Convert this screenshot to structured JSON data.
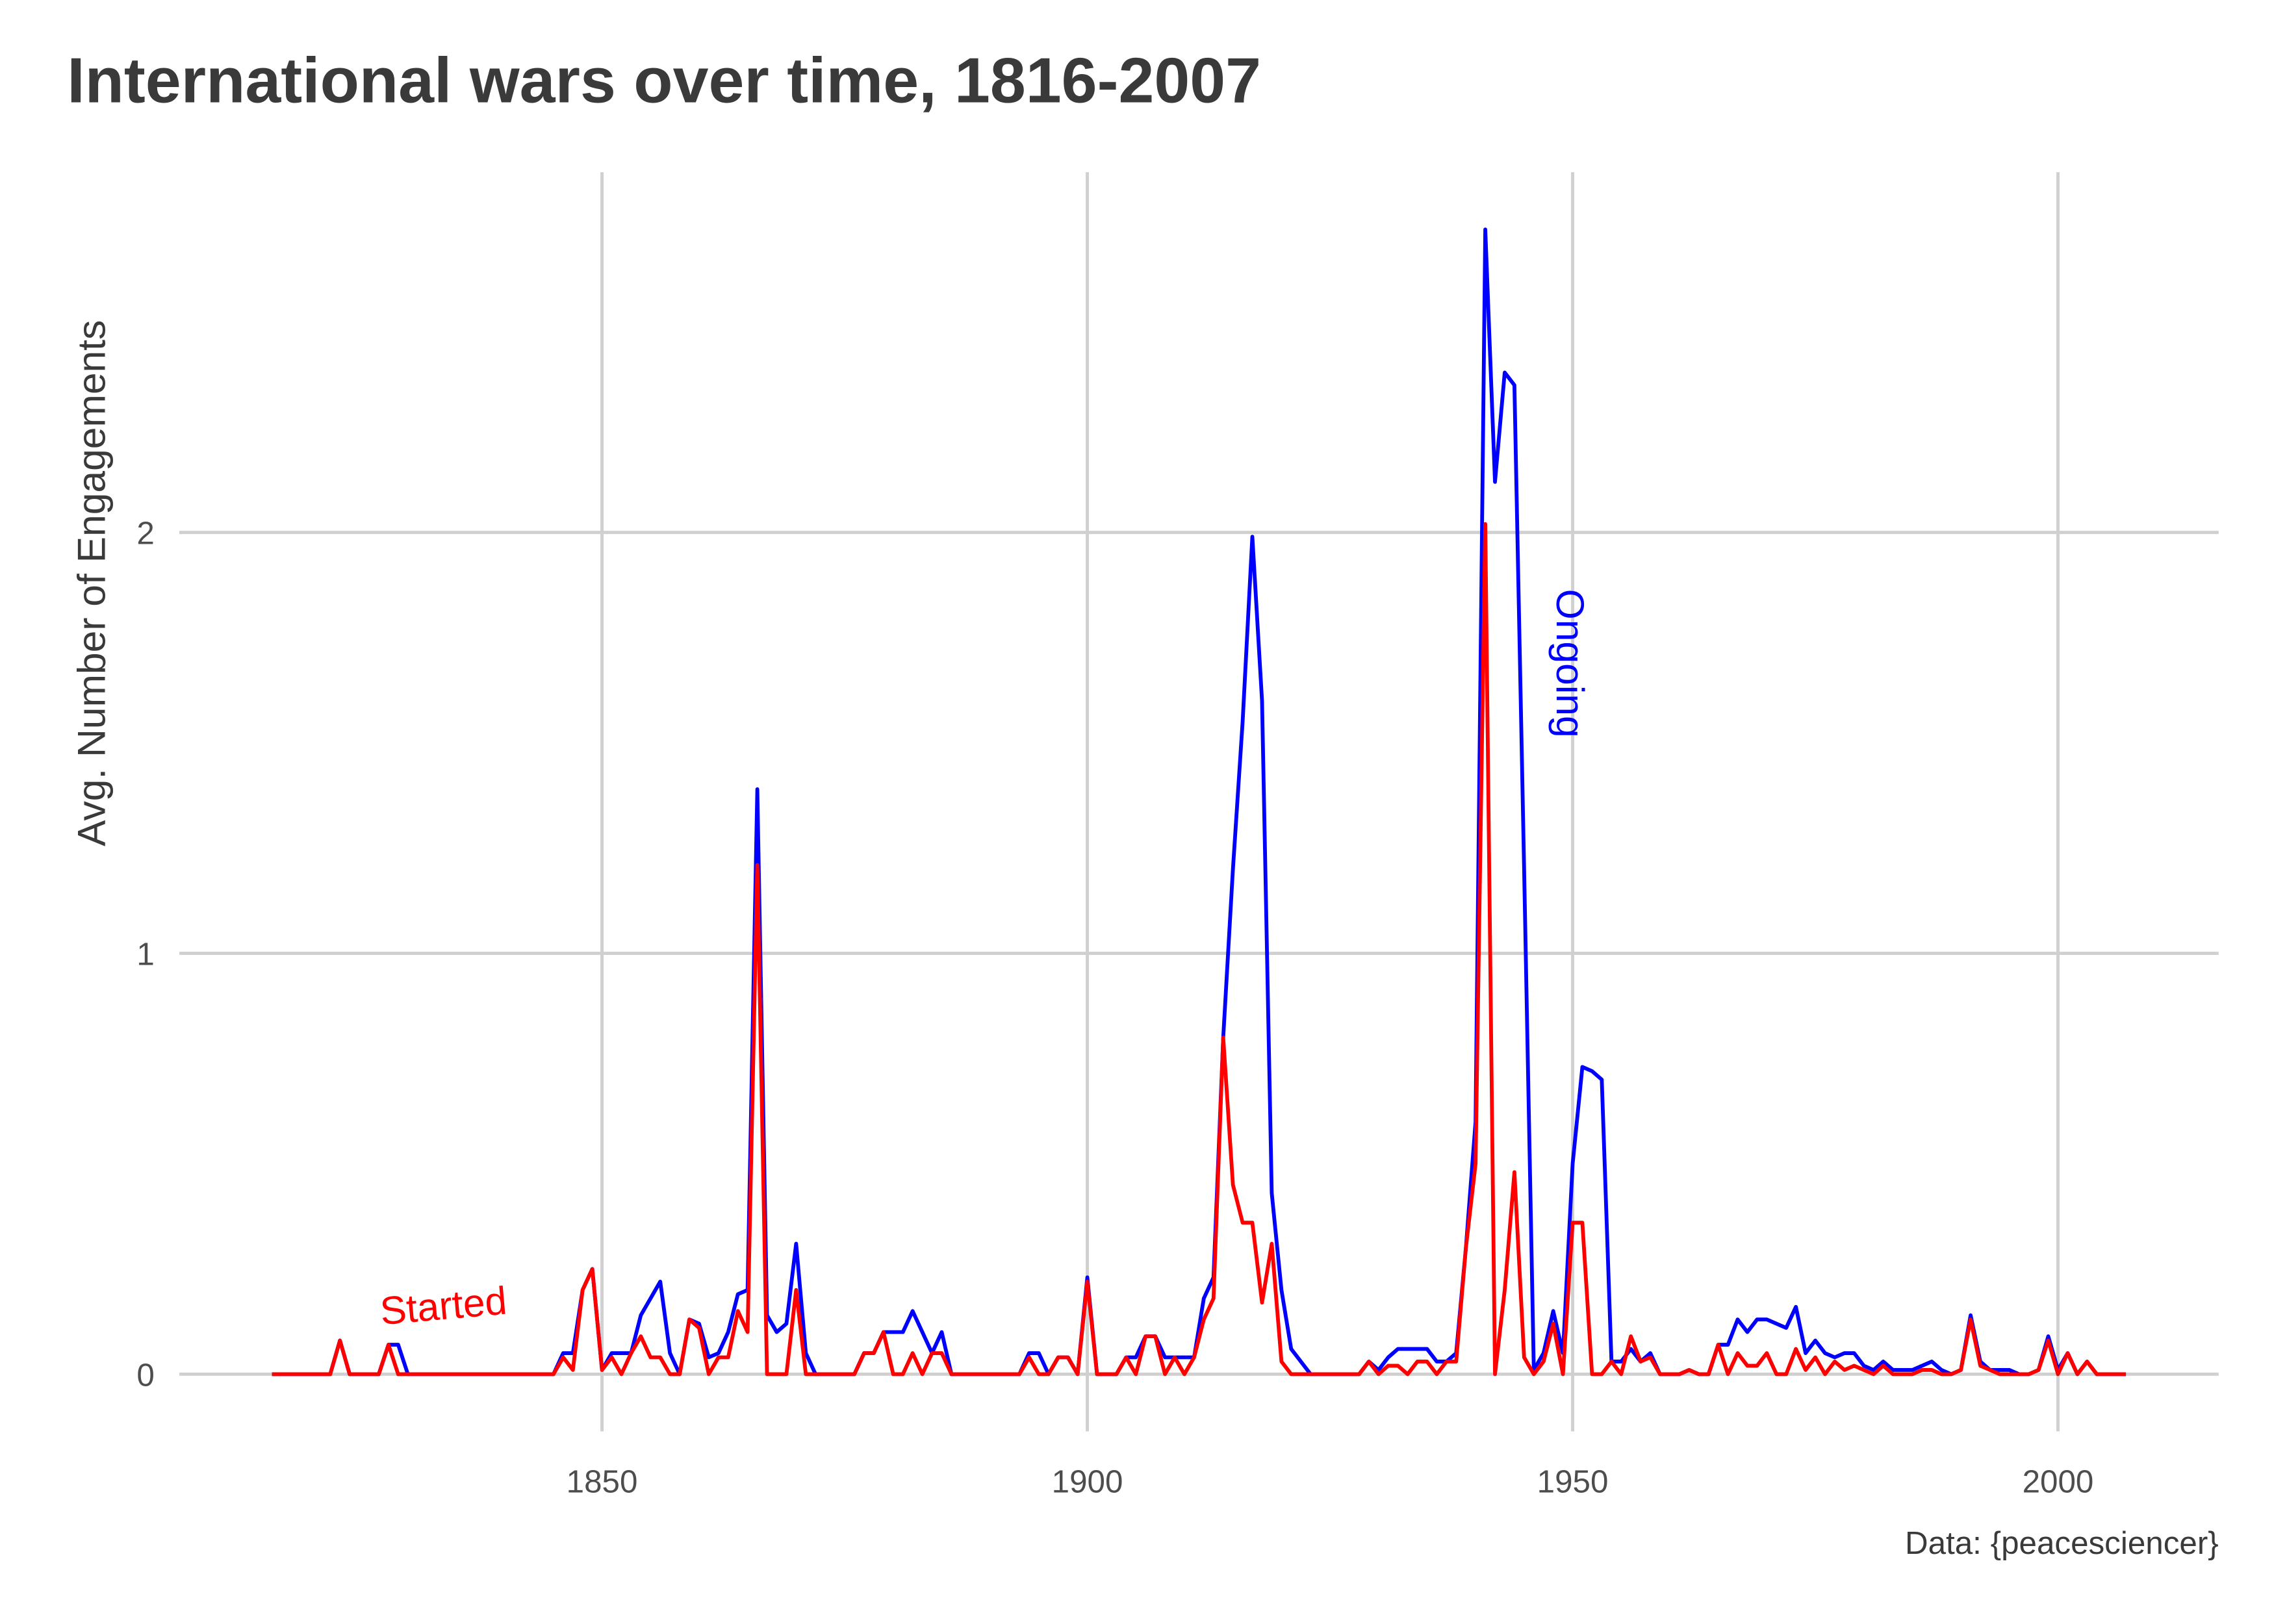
{
  "chart_data": {
    "type": "line",
    "title": "International wars over time, 1816-2007",
    "y_label": "Avg. Number of Engagements",
    "caption": "Data: {peacesciencer}",
    "x": [
      1816,
      1817,
      1818,
      1819,
      1820,
      1821,
      1822,
      1823,
      1824,
      1825,
      1826,
      1827,
      1828,
      1829,
      1830,
      1831,
      1832,
      1833,
      1834,
      1835,
      1836,
      1837,
      1838,
      1839,
      1840,
      1841,
      1842,
      1843,
      1844,
      1845,
      1846,
      1847,
      1848,
      1849,
      1850,
      1851,
      1852,
      1853,
      1854,
      1855,
      1856,
      1857,
      1858,
      1859,
      1860,
      1861,
      1862,
      1863,
      1864,
      1865,
      1866,
      1867,
      1868,
      1869,
      1870,
      1871,
      1872,
      1873,
      1874,
      1875,
      1876,
      1877,
      1878,
      1879,
      1880,
      1881,
      1882,
      1883,
      1884,
      1885,
      1886,
      1887,
      1888,
      1889,
      1890,
      1891,
      1892,
      1893,
      1894,
      1895,
      1896,
      1897,
      1898,
      1899,
      1900,
      1901,
      1902,
      1903,
      1904,
      1905,
      1906,
      1907,
      1908,
      1909,
      1910,
      1911,
      1912,
      1913,
      1914,
      1915,
      1916,
      1917,
      1918,
      1919,
      1920,
      1921,
      1922,
      1923,
      1924,
      1925,
      1926,
      1927,
      1928,
      1929,
      1930,
      1931,
      1932,
      1933,
      1934,
      1935,
      1936,
      1937,
      1938,
      1939,
      1940,
      1941,
      1942,
      1943,
      1944,
      1945,
      1946,
      1947,
      1948,
      1949,
      1950,
      1951,
      1952,
      1953,
      1954,
      1955,
      1956,
      1957,
      1958,
      1959,
      1960,
      1961,
      1962,
      1963,
      1964,
      1965,
      1966,
      1967,
      1968,
      1969,
      1970,
      1971,
      1972,
      1973,
      1974,
      1975,
      1976,
      1977,
      1978,
      1979,
      1980,
      1981,
      1982,
      1983,
      1984,
      1985,
      1986,
      1987,
      1988,
      1989,
      1990,
      1991,
      1992,
      1993,
      1994,
      1995,
      1996,
      1997,
      1998,
      1999,
      2000,
      2001,
      2002,
      2003,
      2004,
      2005,
      2006,
      2007
    ],
    "series": [
      {
        "name": "Ongoing",
        "color": "#0000ff",
        "values": [
          0,
          0,
          0,
          0,
          0,
          0,
          0,
          0.08,
          0,
          0,
          0,
          0,
          0.07,
          0.07,
          0,
          0,
          0,
          0,
          0,
          0,
          0,
          0,
          0,
          0,
          0,
          0,
          0,
          0,
          0,
          0,
          0.05,
          0.05,
          0.2,
          0.25,
          0.01,
          0.05,
          0.05,
          0.05,
          0.14,
          0.18,
          0.22,
          0.05,
          0,
          0.13,
          0.12,
          0.04,
          0.05,
          0.1,
          0.19,
          0.2,
          1.39,
          0.14,
          0.1,
          0.12,
          0.31,
          0.05,
          0,
          0,
          0,
          0,
          0,
          0.05,
          0.05,
          0.1,
          0.1,
          0.1,
          0.15,
          0.1,
          0.05,
          0.1,
          0,
          0,
          0,
          0,
          0,
          0,
          0,
          0,
          0.05,
          0.05,
          0,
          0.04,
          0.04,
          0,
          0.23,
          0,
          0,
          0,
          0.04,
          0.04,
          0.09,
          0.09,
          0.04,
          0.04,
          0.04,
          0.04,
          0.18,
          0.23,
          0.8,
          1.2,
          1.55,
          1.99,
          1.6,
          0.43,
          0.2,
          0.06,
          0.03,
          0,
          0,
          0,
          0,
          0,
          0,
          0.03,
          0.01,
          0.04,
          0.06,
          0.06,
          0.06,
          0.06,
          0.03,
          0.03,
          0.05,
          0.3,
          0.6,
          2.72,
          2.12,
          2.38,
          2.35,
          1.2,
          0.01,
          0.05,
          0.15,
          0.05,
          0.5,
          0.73,
          0.72,
          0.7,
          0.03,
          0.03,
          0.06,
          0.03,
          0.05,
          0,
          0,
          0,
          0.01,
          0,
          0,
          0.07,
          0.07,
          0.13,
          0.1,
          0.13,
          0.13,
          0.12,
          0.11,
          0.16,
          0.05,
          0.08,
          0.05,
          0.04,
          0.05,
          0.05,
          0.02,
          0.01,
          0.03,
          0.01,
          0.01,
          0.01,
          0.02,
          0.03,
          0.01,
          0,
          0.01,
          0.14,
          0.03,
          0.01,
          0.01,
          0.01,
          0,
          0,
          0.01,
          0.09,
          0.01,
          0.05,
          0,
          0.03,
          0,
          0,
          0,
          0
        ]
      },
      {
        "name": "Started",
        "color": "#ff0000",
        "values": [
          0,
          0,
          0,
          0,
          0,
          0,
          0,
          0.08,
          0,
          0,
          0,
          0,
          0.07,
          0,
          0,
          0,
          0,
          0,
          0,
          0,
          0,
          0,
          0,
          0,
          0,
          0,
          0,
          0,
          0,
          0,
          0.04,
          0.01,
          0.2,
          0.25,
          0.01,
          0.04,
          0,
          0.05,
          0.09,
          0.04,
          0.04,
          0,
          0,
          0.13,
          0.11,
          0,
          0.04,
          0.04,
          0.15,
          0.1,
          1.21,
          0,
          0,
          0,
          0.2,
          0,
          0,
          0,
          0,
          0,
          0,
          0.05,
          0.05,
          0.1,
          0,
          0,
          0.05,
          0,
          0.05,
          0.05,
          0,
          0,
          0,
          0,
          0,
          0,
          0,
          0,
          0.04,
          0,
          0,
          0.04,
          0.04,
          0,
          0.22,
          0,
          0,
          0,
          0.04,
          0,
          0.09,
          0.09,
          0,
          0.04,
          0,
          0.04,
          0.13,
          0.18,
          0.8,
          0.45,
          0.36,
          0.36,
          0.17,
          0.31,
          0.03,
          0,
          0,
          0,
          0,
          0,
          0,
          0,
          0,
          0.03,
          0,
          0.02,
          0.02,
          0,
          0.03,
          0.03,
          0,
          0.03,
          0.03,
          0.3,
          0.5,
          2.02,
          0,
          0.2,
          0.48,
          0.04,
          0,
          0.03,
          0.12,
          0,
          0.36,
          0.36,
          0,
          0,
          0.03,
          0,
          0.09,
          0.03,
          0.04,
          0,
          0,
          0,
          0.01,
          0,
          0,
          0.07,
          0,
          0.05,
          0.02,
          0.02,
          0.05,
          0,
          0,
          0.06,
          0.01,
          0.04,
          0,
          0.03,
          0.01,
          0.02,
          0.01,
          0,
          0.02,
          0,
          0,
          0,
          0.01,
          0.01,
          0,
          0,
          0.01,
          0.13,
          0.02,
          0.01,
          0,
          0,
          0,
          0,
          0.01,
          0.08,
          0,
          0.05,
          0,
          0.03,
          0,
          0,
          0,
          0
        ]
      }
    ],
    "xlim": [
      1806.45,
      2016.55
    ],
    "xticks": [
      1850,
      1900,
      1950,
      2000
    ],
    "ylim": [
      -0.136,
      2.856
    ],
    "yticks": [
      0,
      1,
      2
    ],
    "grid": true
  }
}
